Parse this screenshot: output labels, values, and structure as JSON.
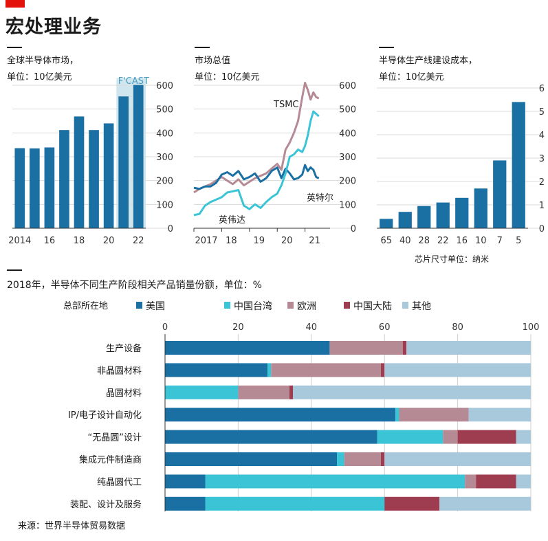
{
  "page": {
    "title": "宏处理业务",
    "source": "来源：世界半导体贸易数据"
  },
  "colors": {
    "main": "#1a6fa3",
    "taiwan": "#3ac4d6",
    "europe": "#b58a95",
    "china": "#9e3d4f",
    "other": "#a8c9db",
    "forecast_shade": "#cfe6ef"
  },
  "charts": [
    {
      "title": "全球半导体市场，",
      "unit": "单位：10亿美元"
    },
    {
      "title": "市场总值",
      "unit": "单位：10亿美元"
    },
    {
      "title": "半导体生产线建设成本，",
      "unit": "单位：10亿美元",
      "xlabel": "芯片尺寸单位：纳米"
    },
    {
      "title": "2018年，半导体不同生产阶段相关产品销量份额，单位：%"
    }
  ],
  "chart_data": [
    {
      "type": "bar",
      "title": "全球半导体市场，",
      "ylabel": "单位：10亿美元",
      "categories": [
        "2014",
        "2015",
        "2016",
        "2017",
        "2018",
        "2019",
        "2020",
        "2021",
        "2022"
      ],
      "values": [
        336,
        335,
        339,
        412,
        469,
        412,
        440,
        553,
        601
      ],
      "x_tick_labels": [
        "2014",
        "16",
        "18",
        "20",
        "22"
      ],
      "ylim": [
        0,
        600
      ],
      "y_ticks": [
        0,
        100,
        200,
        300,
        400,
        500,
        600
      ],
      "forecast_label": "F'CAST",
      "forecast_categories": [
        "2021",
        "2022"
      ]
    },
    {
      "type": "line",
      "title": "市场总值",
      "ylabel": "单位：10亿美元",
      "x_ticks": [
        "2017",
        "18",
        "19",
        "20",
        "21"
      ],
      "x_range": [
        2017.0,
        2021.9
      ],
      "ylim": [
        0,
        600
      ],
      "y_ticks": [
        0,
        100,
        200,
        300,
        400,
        500,
        600
      ],
      "series": [
        {
          "name": "TSMC",
          "x": [
            2017.0,
            2017.2,
            2017.4,
            2017.6,
            2017.8,
            2018.0,
            2018.2,
            2018.4,
            2018.6,
            2018.8,
            2019.0,
            2019.2,
            2019.4,
            2019.6,
            2019.8,
            2020.0,
            2020.15,
            2020.3,
            2020.45,
            2020.6,
            2020.75,
            2020.9,
            2021.0,
            2021.1,
            2021.2,
            2021.3,
            2021.4,
            2021.5
          ],
          "y": [
            150,
            165,
            175,
            185,
            200,
            215,
            200,
            185,
            205,
            180,
            195,
            210,
            220,
            230,
            250,
            270,
            245,
            330,
            360,
            400,
            450,
            550,
            610,
            580,
            540,
            570,
            550,
            545
          ]
        },
        {
          "name": "英特尔",
          "x": [
            2017.0,
            2017.2,
            2017.4,
            2017.6,
            2017.8,
            2018.0,
            2018.2,
            2018.4,
            2018.6,
            2018.8,
            2019.0,
            2019.2,
            2019.4,
            2019.6,
            2019.8,
            2020.0,
            2020.15,
            2020.3,
            2020.45,
            2020.6,
            2020.75,
            2020.9,
            2021.0,
            2021.1,
            2021.2,
            2021.3,
            2021.4,
            2021.5
          ],
          "y": [
            170,
            165,
            175,
            175,
            190,
            225,
            235,
            220,
            240,
            205,
            215,
            230,
            195,
            210,
            240,
            255,
            210,
            250,
            230,
            205,
            210,
            225,
            265,
            240,
            255,
            245,
            215,
            210
          ]
        },
        {
          "name": "英伟达",
          "x": [
            2017.0,
            2017.2,
            2017.4,
            2017.6,
            2017.8,
            2018.0,
            2018.2,
            2018.4,
            2018.6,
            2018.8,
            2019.0,
            2019.2,
            2019.4,
            2019.6,
            2019.8,
            2020.0,
            2020.15,
            2020.3,
            2020.45,
            2020.6,
            2020.75,
            2020.9,
            2021.0,
            2021.1,
            2021.2,
            2021.3,
            2021.4,
            2021.5
          ],
          "y": [
            55,
            60,
            95,
            110,
            120,
            130,
            150,
            155,
            160,
            95,
            80,
            100,
            85,
            110,
            130,
            145,
            180,
            230,
            300,
            310,
            330,
            320,
            345,
            390,
            450,
            490,
            480,
            470
          ]
        }
      ]
    },
    {
      "type": "bar",
      "title": "半导体生产线建设成本，",
      "ylabel": "单位：10亿美元",
      "xlabel": "芯片尺寸单位：纳米",
      "categories": [
        "65",
        "40",
        "28",
        "22",
        "16",
        "10",
        "7",
        "5"
      ],
      "values": [
        0.4,
        0.7,
        0.95,
        1.1,
        1.3,
        1.7,
        2.9,
        5.4
      ],
      "ylim": [
        0,
        6
      ],
      "y_ticks": [
        0,
        1,
        2,
        3,
        4,
        5,
        6
      ]
    },
    {
      "type": "bar",
      "orientation": "horizontal",
      "stacked": true,
      "title": "2018年，半导体不同生产阶段相关产品销量份额，单位：%",
      "legend_title": "总部所在地",
      "xlim": [
        0,
        100
      ],
      "x_ticks": [
        0,
        20,
        40,
        60,
        80,
        100
      ],
      "categories": [
        "生产设备",
        "非晶圆材料",
        "晶圆材料",
        "IP/电子设计自动化",
        "“无晶圆”设计",
        "集成元件制造商",
        "纯晶圆代工",
        "装配、设计及服务"
      ],
      "series": [
        {
          "name": "美国",
          "values": [
            45,
            28,
            0,
            63,
            58,
            47,
            11,
            11
          ]
        },
        {
          "name": "中国台湾",
          "values": [
            0,
            1,
            20,
            1,
            18,
            2,
            71,
            49
          ]
        },
        {
          "name": "欧洲",
          "values": [
            20,
            30,
            14,
            19,
            4,
            10,
            3,
            0
          ]
        },
        {
          "name": "中国大陆",
          "values": [
            1,
            1,
            1,
            0,
            16,
            1,
            11,
            15
          ]
        },
        {
          "name": "其他",
          "values": [
            34,
            40,
            65,
            17,
            4,
            40,
            4,
            25
          ]
        }
      ]
    }
  ]
}
